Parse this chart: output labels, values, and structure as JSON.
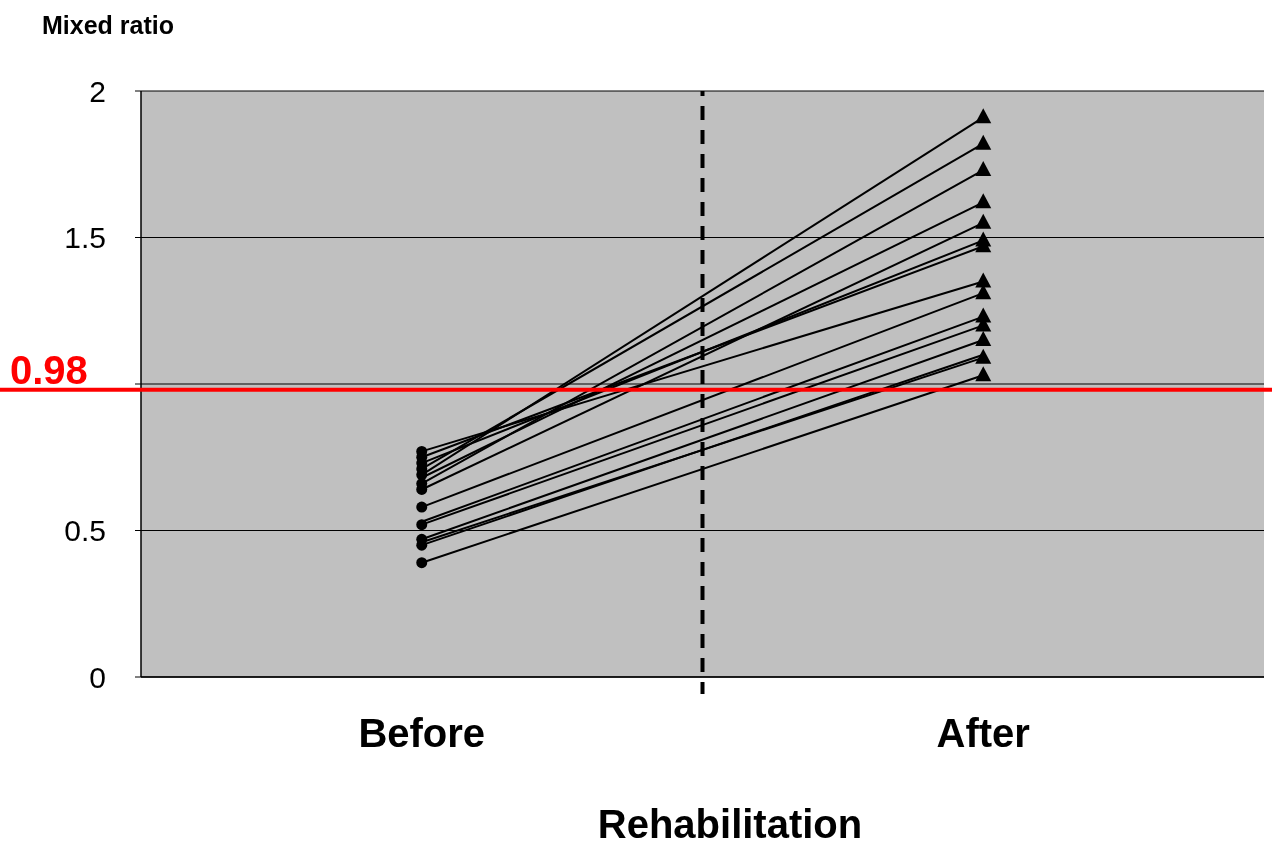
{
  "chart_data": {
    "type": "line",
    "ylabel": "Mixed ratio",
    "xlabel": "Rehabilitation",
    "categories": [
      "Before",
      "After"
    ],
    "ylim": [
      0,
      2
    ],
    "yticks": [
      0,
      0.5,
      {
        "value": 1,
        "label": null
      },
      1.5,
      2
    ],
    "grid": "y",
    "marker": "none",
    "line_style": "solid",
    "series": [
      {
        "color": "#000000",
        "values": [
          0.69,
          1.91
        ]
      },
      {
        "color": "#000000",
        "values": [
          0.71,
          1.82
        ]
      },
      {
        "color": "#000000",
        "values": [
          0.66,
          1.73
        ]
      },
      {
        "color": "#000000",
        "values": [
          0.68,
          1.62
        ]
      },
      {
        "color": "#000000",
        "values": [
          0.64,
          1.55
        ]
      },
      {
        "color": "#000000",
        "values": [
          0.73,
          1.49
        ]
      },
      {
        "color": "#000000",
        "values": [
          0.75,
          1.47
        ]
      },
      {
        "color": "#000000",
        "values": [
          0.77,
          1.35
        ]
      },
      {
        "color": "#000000",
        "values": [
          0.58,
          1.31
        ]
      },
      {
        "color": "#000000",
        "values": [
          0.53,
          1.23
        ]
      },
      {
        "color": "#000000",
        "values": [
          0.52,
          1.2
        ]
      },
      {
        "color": "#000000",
        "values": [
          0.47,
          1.15
        ]
      },
      {
        "color": "#000000",
        "values": [
          0.45,
          1.1
        ]
      },
      {
        "color": "#000000",
        "values": [
          0.46,
          1.09
        ]
      },
      {
        "color": "#000000",
        "values": [
          0.39,
          1.03
        ]
      },
      {
        "type": "scatter",
        "marker": "circle",
        "color": "#000000",
        "x": [
          "Before",
          "Before",
          "Before",
          "Before",
          "Before",
          "Before",
          "Before",
          "Before",
          "Before",
          "Before",
          "Before",
          "Before",
          "Before",
          "Before",
          "Before"
        ],
        "values": [
          0.69,
          0.71,
          0.66,
          null,
          0.64,
          0.73,
          0.75,
          0.77,
          0.58,
          null,
          0.52,
          0.47,
          0.45,
          null,
          0.39
        ]
      },
      {
        "type": "scatter",
        "marker": "triangle",
        "color": "#000000",
        "x": [
          "After",
          "After",
          "After",
          "After",
          "After",
          "After",
          "After",
          "After",
          "After",
          "After",
          "After",
          "After",
          "After",
          "After",
          "After"
        ],
        "values": [
          1.91,
          1.82,
          1.73,
          1.62,
          1.55,
          1.49,
          1.47,
          1.35,
          1.31,
          1.23,
          1.2,
          1.15,
          null,
          1.09,
          1.03
        ]
      }
    ],
    "ref_lines": [
      {
        "axis": "y",
        "value": 0.98,
        "label": "0.98",
        "color": "#ff0000",
        "line_style": "solid"
      }
    ]
  }
}
